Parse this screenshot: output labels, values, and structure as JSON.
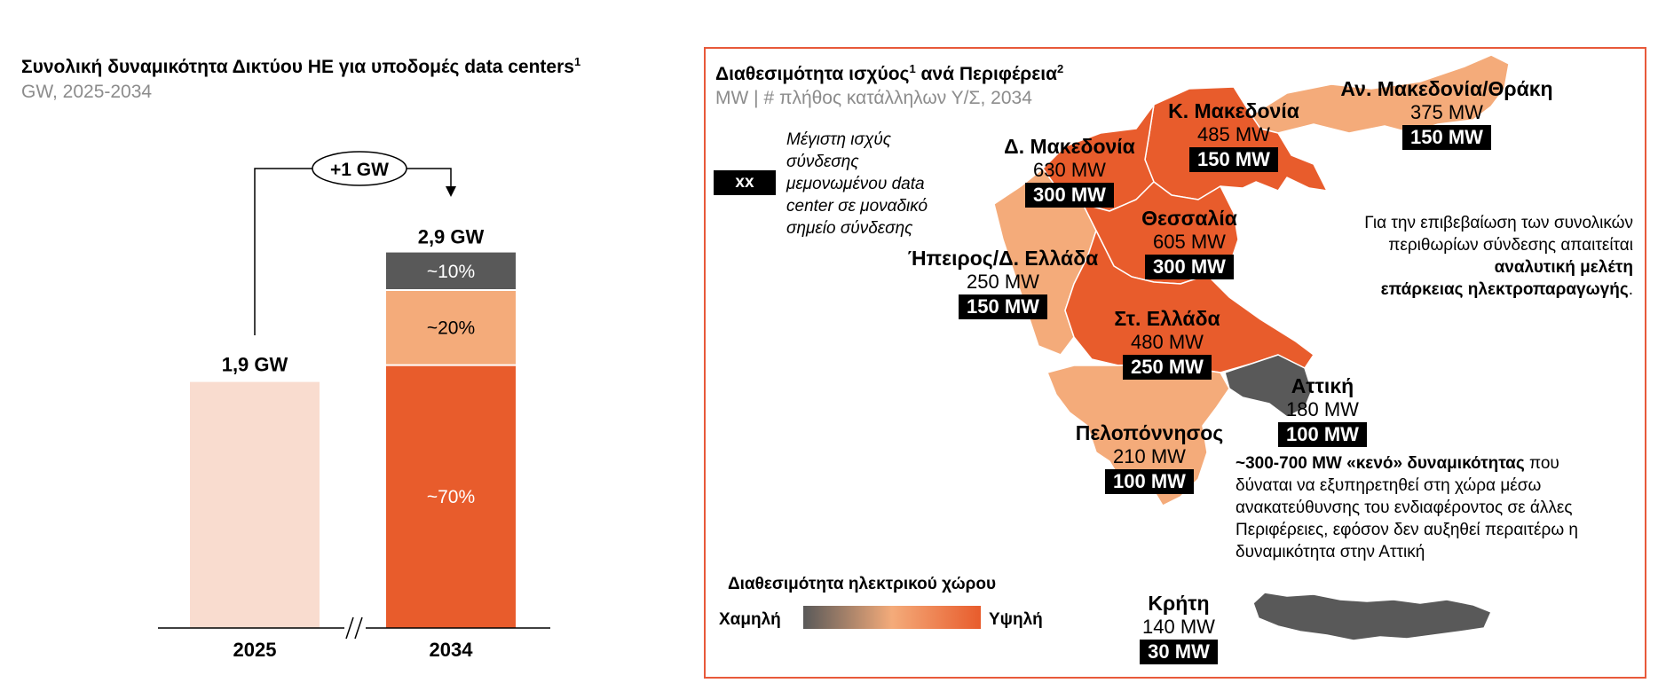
{
  "left_chart": {
    "title": "Συνολική δυναμικότητα Δικτύου ΗΕ για υποδομές data centers",
    "title_sup": "1",
    "subtitle": "GW, 2025-2034",
    "delta_label": "+1 GW",
    "bar_2025_total": "1,9 GW",
    "bar_2034_total": "2,9 GW",
    "break_symbol": "//"
  },
  "chart_data": {
    "type": "bar",
    "title": "Συνολική δυναμικότητα Δικτύου ΗΕ για υποδομές data centers",
    "ylabel": "GW",
    "categories": [
      "2025",
      "2034"
    ],
    "values": [
      1.9,
      2.9
    ],
    "ylim": [
      0,
      3.0
    ],
    "stack_2034": [
      {
        "label": "~70%",
        "share": 0.7,
        "color": "#e85c2c"
      },
      {
        "label": "~20%",
        "share": 0.2,
        "color": "#f4ab7a"
      },
      {
        "label": "~10%",
        "share": 0.1,
        "color": "#595959"
      }
    ],
    "color_2025": "#f9dccf"
  },
  "map_panel": {
    "title": "Διαθεσιμότητα ισχύος",
    "title_sup1": "1",
    "title_mid": " ανά Περιφέρεια",
    "title_sup2": "2",
    "subtitle": "MW | # πλήθος κατάλληλων Υ/Σ, 2034",
    "legend_badge": "xx",
    "legend_text": [
      "Μέγιστη ισχύς",
      "σύνδεσης",
      "μεμονωμένου data",
      "center σε μοναδικό",
      "σημείο σύνδεσης"
    ],
    "regions": [
      {
        "name": "Αν. Μακεδονία/Θράκη",
        "mw": "375 MW",
        "badge": "150 MW"
      },
      {
        "name": "Κ. Μακεδονία",
        "mw": "485 MW",
        "badge": "150 MW"
      },
      {
        "name": "Δ. Μακεδονία",
        "mw": "630 MW",
        "badge": "300 MW"
      },
      {
        "name": "Θεσσαλία",
        "mw": "605 MW",
        "badge": "300 MW"
      },
      {
        "name": "Ήπειρος/Δ. Ελλάδα",
        "mw": "250 MW",
        "badge": "150 MW"
      },
      {
        "name": "Στ. Ελλάδα",
        "mw": "480 MW",
        "badge": "250 MW"
      },
      {
        "name": "Αττική",
        "mw": "180 MW",
        "badge": "100 MW"
      },
      {
        "name": "Πελοπόννησος",
        "mw": "210 MW",
        "badge": "100 MW"
      },
      {
        "name": "Κρήτη",
        "mw": "140 MW",
        "badge": "30 MW"
      }
    ],
    "verify_note": {
      "line1": "Για την επιβεβαίωση των συνολικών",
      "line2": "περιθωρίων σύνδεσης απαιτείται",
      "line3_bold": "αναλυτική μελέτη",
      "line4_bold": "επάρκειας ηλεκτροπαραγωγής",
      "line4_end": "."
    },
    "gap_note": {
      "bold": "~300-700 MW «κενό» δυναμικότητας",
      "l1_rest": " που",
      "l2": "δύναται να εξυπηρετηθεί στη χώρα μέσω",
      "l3": "ανακατεύθυνσης του ενδιαφέροντος σε άλλες",
      "l4": "Περιφέρειες, εφόσον δεν αυξηθεί περαιτέρω η",
      "l5": "δυναμικότητα στην Αττική"
    },
    "scale": {
      "title": "Διαθεσιμότητα ηλεκτρικού χώρου",
      "low": "Χαμηλή",
      "high": "Υψηλή"
    }
  }
}
